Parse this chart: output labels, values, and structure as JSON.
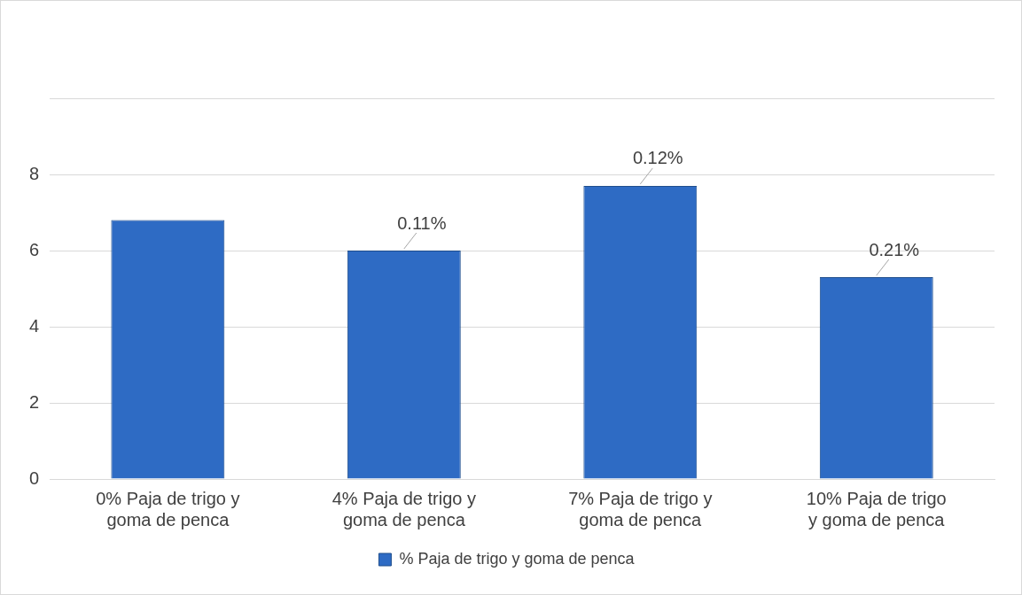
{
  "chart_data": {
    "type": "bar",
    "categories": [
      "0% Paja de trigo y goma de penca",
      "4% Paja de trigo y goma de penca",
      "7% Paja de trigo y goma de penca",
      "10% Paja de trigo y goma de penca"
    ],
    "series": [
      {
        "name": "% Paja de trigo y goma de penca",
        "color": "#2e6bc4",
        "values": [
          6.8,
          6.0,
          7.7,
          5.3
        ]
      }
    ],
    "ylim": [
      0,
      10
    ],
    "yticks": [
      0,
      2,
      4,
      6,
      8,
      {
        "value": 10,
        "label": null
      }
    ],
    "grid": "y",
    "legend": "bottom",
    "annotations": [
      {
        "text": "0.11%",
        "x": "4% Paja de trigo y goma de penca",
        "y": 6.0
      },
      {
        "text": "0.12%",
        "x": "7% Paja de trigo y goma de penca",
        "y": 7.7
      },
      {
        "text": "0.21%",
        "x": "10% Paja de trigo y goma de penca",
        "y": 5.3
      }
    ]
  }
}
